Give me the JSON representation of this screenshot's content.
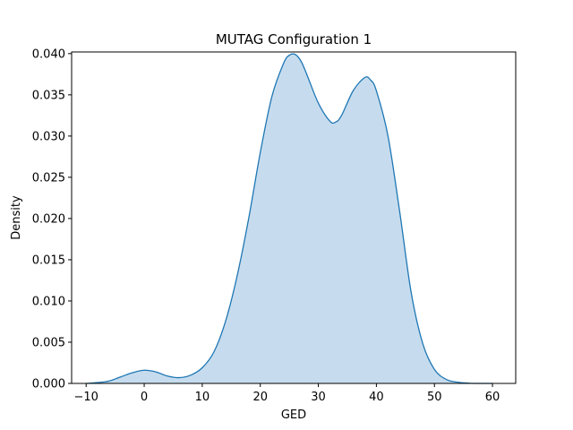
{
  "chart_data": {
    "type": "area",
    "title": "MUTAG Configuration 1",
    "xlabel": "GED",
    "ylabel": "Density",
    "xlim": [
      -12.5,
      64.0
    ],
    "ylim": [
      0.0,
      0.0402
    ],
    "xticks": [
      -10,
      0,
      10,
      20,
      30,
      40,
      50,
      60
    ],
    "xtick_labels": [
      "−10",
      "0",
      "10",
      "20",
      "30",
      "40",
      "50",
      "60"
    ],
    "yticks": [
      0.0,
      0.005,
      0.01,
      0.015,
      0.02,
      0.025,
      0.03,
      0.035,
      0.04
    ],
    "ytick_labels": [
      "0.000",
      "0.005",
      "0.010",
      "0.015",
      "0.020",
      "0.025",
      "0.030",
      "0.035",
      "0.040"
    ],
    "grid": false,
    "series": [
      {
        "line_color": "#1f77b4",
        "fill_color": "#c6dcee",
        "x": [
          -10,
          -8,
          -6,
          -4,
          -2,
          0,
          2,
          4,
          6,
          8,
          10,
          12,
          14,
          16,
          18,
          20,
          22,
          24,
          25,
          26,
          27,
          28,
          30,
          32,
          33,
          34,
          36,
          38,
          39,
          40,
          42,
          44,
          46,
          48,
          50,
          52,
          54,
          56,
          58,
          60
        ],
        "y": [
          0.0,
          0.0001,
          0.0003,
          0.0008,
          0.0013,
          0.0016,
          0.0014,
          0.0009,
          0.0007,
          0.001,
          0.0019,
          0.0038,
          0.0075,
          0.013,
          0.02,
          0.028,
          0.0348,
          0.0388,
          0.0398,
          0.0399,
          0.0391,
          0.0375,
          0.034,
          0.0318,
          0.0317,
          0.0325,
          0.0355,
          0.0371,
          0.0368,
          0.0355,
          0.03,
          0.0209,
          0.011,
          0.0048,
          0.0017,
          0.0005,
          0.00015,
          3e-05,
          0.0,
          0.0
        ]
      }
    ]
  }
}
